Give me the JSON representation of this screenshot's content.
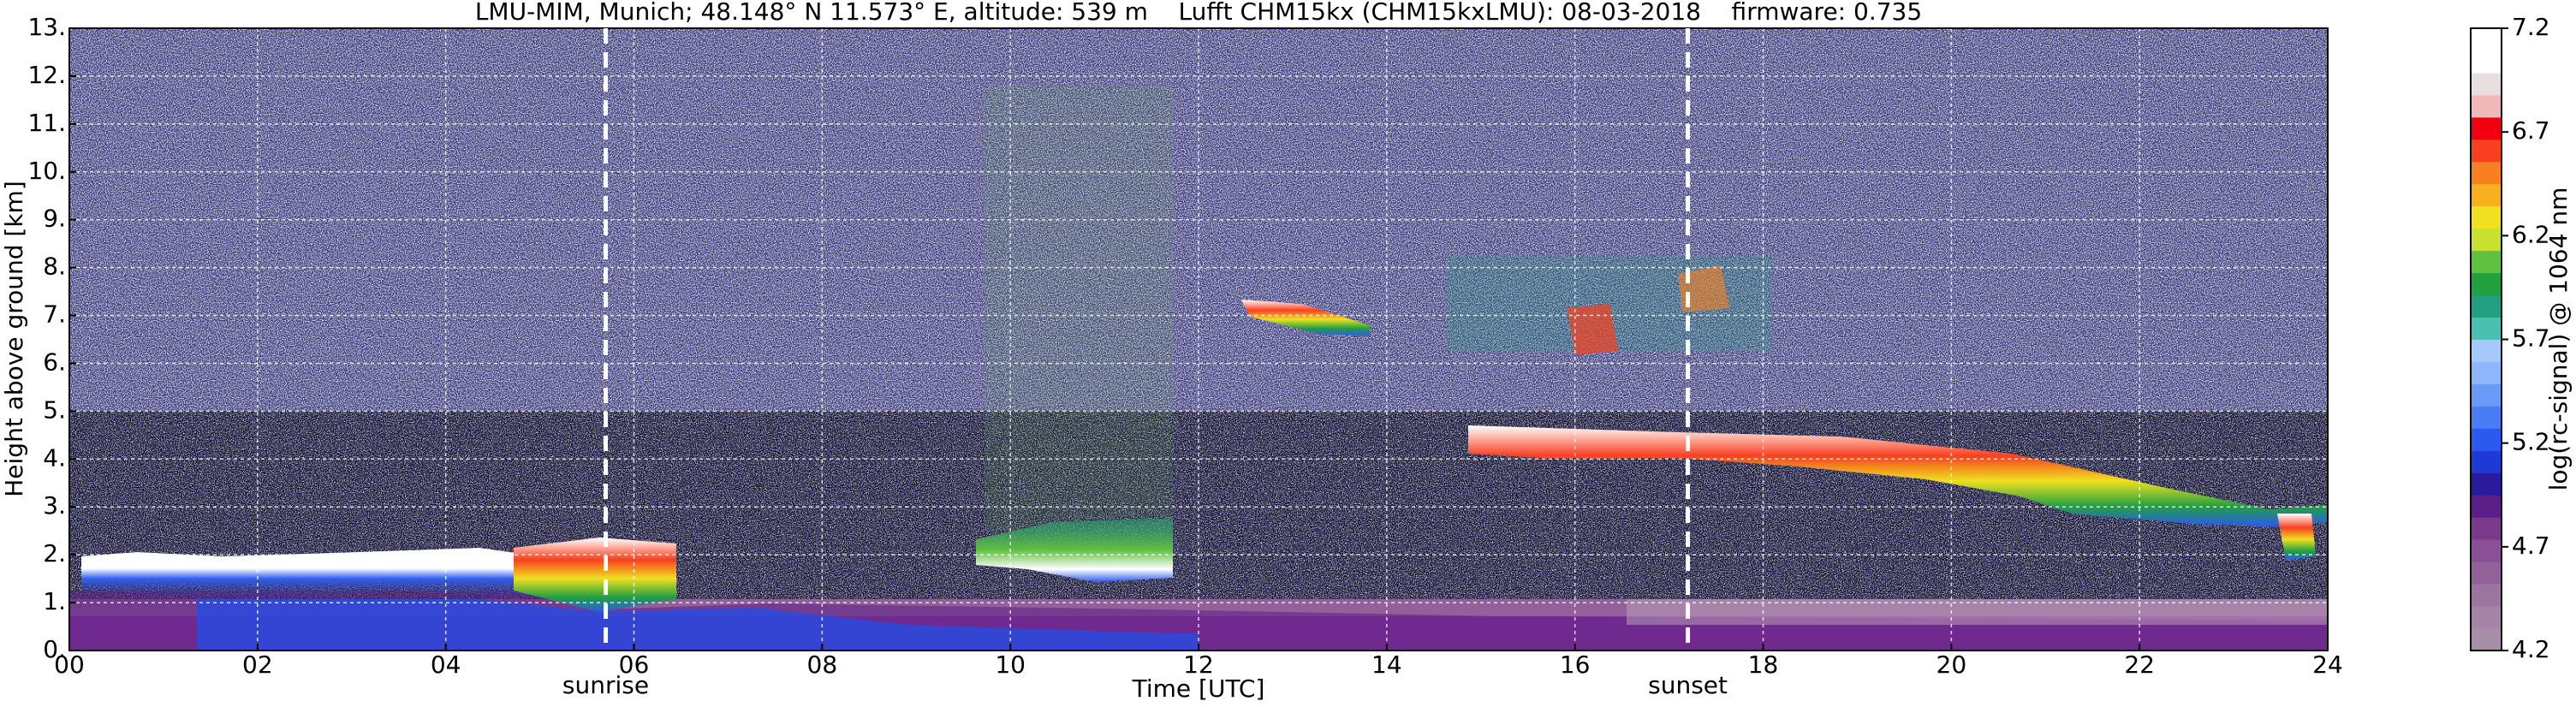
{
  "chart_data": {
    "type": "heatmap",
    "title": "LMU-MIM, Munich; 48.148° N 11.573° E, altitude: 539 m    Lufft CHM15kx (CHM15kxLMU): 08-03-2018    firmware: 0.735",
    "xlabel": "Time [UTC]",
    "ylabel": "Height above ground [km]",
    "xlim": [
      0,
      24
    ],
    "xticks": [
      {
        "value": 0,
        "label": "00"
      },
      {
        "value": 2,
        "label": "02"
      },
      {
        "value": 4,
        "label": "04"
      },
      {
        "value": 6,
        "label": "06"
      },
      {
        "value": 8,
        "label": "08"
      },
      {
        "value": 10,
        "label": "10"
      },
      {
        "value": 12,
        "label": "12"
      },
      {
        "value": 14,
        "label": "14"
      },
      {
        "value": 16,
        "label": "16"
      },
      {
        "value": 18,
        "label": "18"
      },
      {
        "value": 20,
        "label": "20"
      },
      {
        "value": 22,
        "label": "22"
      },
      {
        "value": 24,
        "label": "24"
      }
    ],
    "ylim": [
      0,
      13
    ],
    "yticks": [
      {
        "value": 0,
        "label": "0."
      },
      {
        "value": 1,
        "label": "1."
      },
      {
        "value": 2,
        "label": "2."
      },
      {
        "value": 3,
        "label": "3."
      },
      {
        "value": 4,
        "label": "4."
      },
      {
        "value": 5,
        "label": "5."
      },
      {
        "value": 6,
        "label": "6."
      },
      {
        "value": 7,
        "label": "7."
      },
      {
        "value": 8,
        "label": "8."
      },
      {
        "value": 9,
        "label": "9."
      },
      {
        "value": 10,
        "label": "10."
      },
      {
        "value": 11,
        "label": "11."
      },
      {
        "value": 12,
        "label": "12."
      },
      {
        "value": 13,
        "label": "13."
      }
    ],
    "grid": true,
    "colorbar": {
      "label": "log(rc-signal) @ 1064 nm",
      "lim": [
        4.2,
        7.2
      ],
      "ticks": [
        4.2,
        4.7,
        5.2,
        5.7,
        6.2,
        6.7,
        7.2
      ],
      "colors": [
        "#a88fa8",
        "#a484a6",
        "#9c74a0",
        "#93619a",
        "#8a4f95",
        "#7a3a8c",
        "#5a1f86",
        "#2a1a9e",
        "#1e3ad6",
        "#2a5af0",
        "#4a7cf6",
        "#6a9af8",
        "#8fb6fa",
        "#a6c8fb",
        "#4ac0b0",
        "#20a080",
        "#22a040",
        "#60c040",
        "#c8e030",
        "#f0e020",
        "#f8b020",
        "#f88020",
        "#f84020",
        "#f00010",
        "#f0b8b8",
        "#e8e0e0",
        "#ffffff",
        "#ffffff"
      ]
    },
    "annotations": [
      {
        "text": "sunrise",
        "x": 5.7
      },
      {
        "text": "sunset",
        "x": 17.2
      }
    ]
  }
}
